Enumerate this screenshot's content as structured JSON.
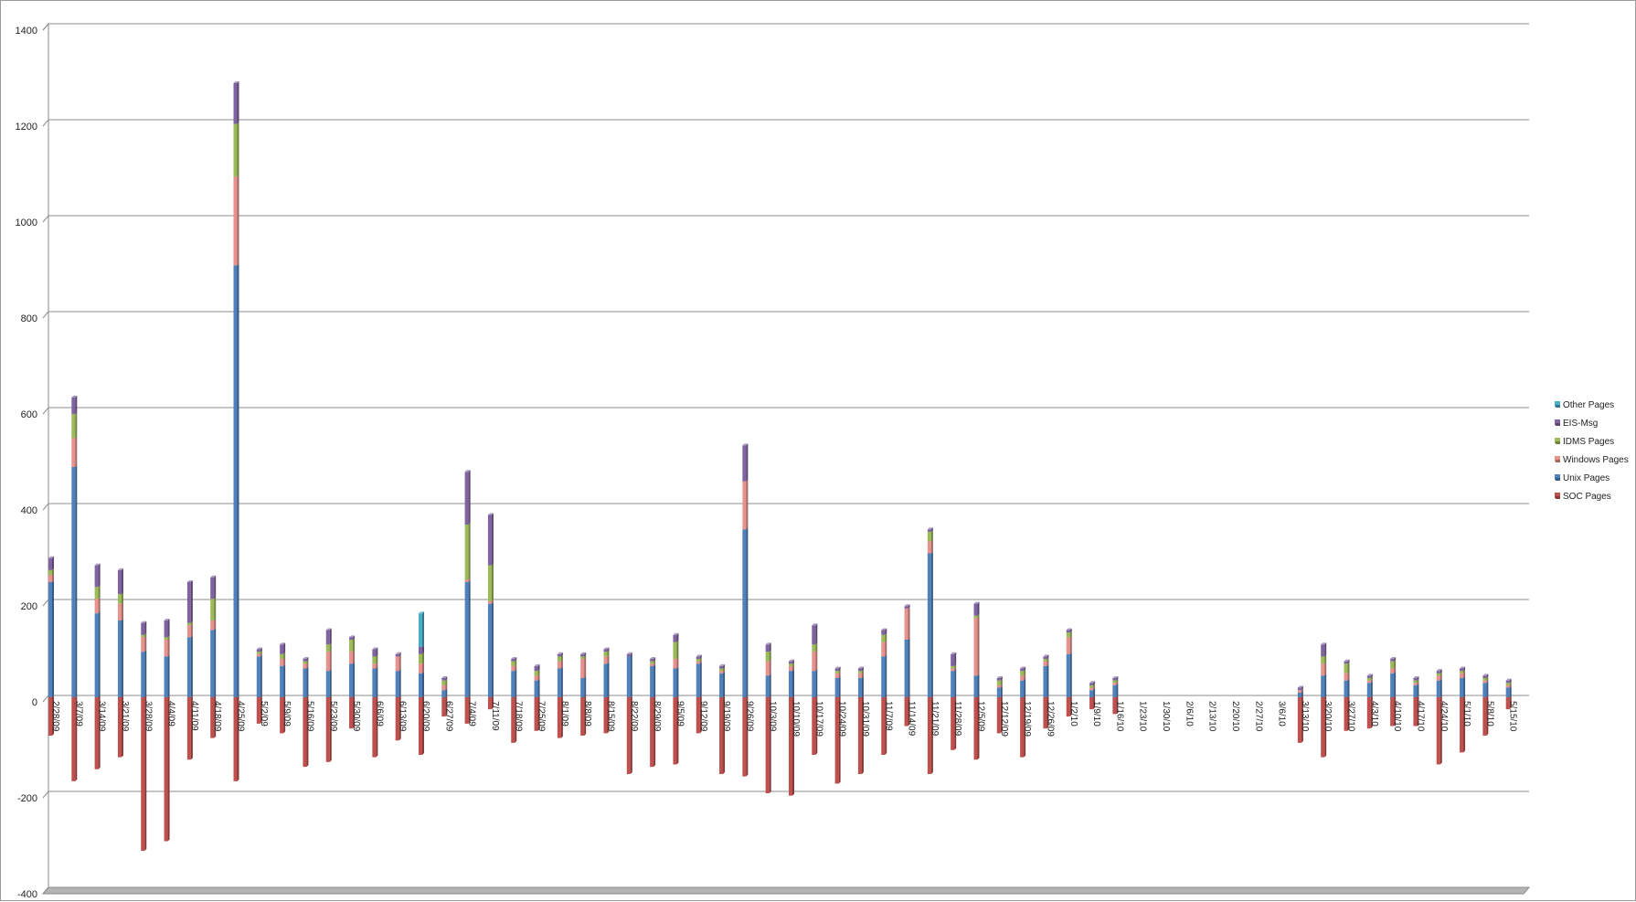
{
  "chart_data": {
    "type": "bar",
    "stacked": true,
    "style": "3d-column",
    "title": "",
    "xlabel": "",
    "ylabel": "",
    "ylim": [
      -400,
      1400
    ],
    "yticks": [
      -400,
      -200,
      0,
      200,
      400,
      600,
      800,
      1000,
      1200,
      1400
    ],
    "grid": true,
    "legend_position": "right",
    "categories": [
      "2/28/09",
      "3/7/09",
      "3/14/09",
      "3/21/09",
      "3/28/09",
      "4/4/09",
      "4/11/09",
      "4/18/09",
      "4/25/09",
      "5/2/09",
      "5/9/09",
      "5/16/09",
      "5/23/09",
      "5/30/09",
      "6/6/09",
      "6/13/09",
      "6/20/09",
      "6/27/09",
      "7/4/09",
      "7/11/09",
      "7/18/09",
      "7/25/09",
      "8/1/09",
      "8/8/09",
      "8/15/09",
      "8/22/09",
      "8/29/09",
      "9/5/09",
      "9/12/09",
      "9/19/09",
      "9/26/09",
      "10/3/09",
      "10/10/09",
      "10/17/09",
      "10/24/09",
      "10/31/09",
      "11/7/09",
      "11/14/09",
      "11/21/09",
      "11/28/09",
      "12/5/09",
      "12/12/09",
      "12/19/09",
      "12/26/09",
      "1/2/10",
      "1/9/10",
      "1/16/10",
      "1/23/10",
      "1/30/10",
      "2/6/10",
      "2/13/10",
      "2/20/10",
      "2/27/10",
      "3/6/10",
      "3/13/10",
      "3/20/10",
      "3/27/10",
      "4/3/10",
      "4/10/10",
      "4/17/10",
      "4/24/10",
      "5/1/10",
      "5/8/10",
      "5/15/10"
    ],
    "series": [
      {
        "name": "SOC Pages",
        "color": "#c0504d",
        "values": [
          -80,
          -175,
          -150,
          -125,
          -320,
          -300,
          -130,
          -85,
          -175,
          -55,
          -75,
          -145,
          -135,
          -65,
          -125,
          -90,
          -120,
          -40,
          -55,
          -25,
          -95,
          -70,
          -85,
          -80,
          -75,
          -160,
          -145,
          -140,
          -75,
          -160,
          -165,
          -200,
          -205,
          -120,
          -180,
          -160,
          -120,
          -60,
          -160,
          -110,
          -130,
          -75,
          -125,
          -65,
          -40,
          -25,
          -35,
          0,
          0,
          0,
          0,
          0,
          0,
          0,
          -95,
          -125,
          -70,
          -65,
          -60,
          -60,
          -140,
          -115,
          -80,
          -25
        ]
      },
      {
        "name": "Unix Pages",
        "color": "#4f81bd",
        "values": [
          240,
          480,
          175,
          160,
          95,
          85,
          125,
          140,
          900,
          85,
          65,
          60,
          55,
          70,
          60,
          55,
          50,
          15,
          240,
          195,
          55,
          35,
          60,
          40,
          70,
          85,
          65,
          60,
          70,
          50,
          350,
          45,
          55,
          55,
          40,
          40,
          85,
          120,
          300,
          55,
          45,
          20,
          35,
          65,
          90,
          15,
          25,
          0,
          0,
          0,
          0,
          0,
          0,
          0,
          10,
          45,
          35,
          30,
          50,
          25,
          35,
          40,
          30,
          20
        ]
      },
      {
        "name": "Windows Pages",
        "color": "#e8928e",
        "values": [
          15,
          60,
          30,
          35,
          30,
          35,
          25,
          20,
          185,
          5,
          15,
          10,
          40,
          25,
          10,
          30,
          20,
          10,
          5,
          5,
          10,
          10,
          15,
          40,
          15,
          0,
          5,
          20,
          5,
          5,
          100,
          30,
          10,
          40,
          10,
          10,
          30,
          65,
          25,
          5,
          120,
          5,
          10,
          10,
          35,
          5,
          5,
          0,
          0,
          0,
          0,
          0,
          0,
          0,
          5,
          25,
          15,
          5,
          10,
          5,
          10,
          10,
          5,
          5
        ]
      },
      {
        "name": "IDMS Pages",
        "color": "#9bbb59",
        "values": [
          10,
          50,
          25,
          20,
          5,
          5,
          5,
          45,
          110,
          5,
          10,
          5,
          15,
          25,
          15,
          0,
          20,
          10,
          115,
          75,
          10,
          10,
          10,
          5,
          10,
          0,
          5,
          35,
          5,
          5,
          0,
          20,
          5,
          15,
          5,
          5,
          15,
          0,
          20,
          5,
          5,
          10,
          10,
          5,
          10,
          5,
          5,
          0,
          0,
          0,
          0,
          0,
          0,
          0,
          0,
          15,
          20,
          5,
          15,
          5,
          5,
          5,
          5,
          5
        ]
      },
      {
        "name": "EIS-Msg",
        "color": "#8064a2",
        "values": [
          25,
          35,
          45,
          50,
          25,
          35,
          85,
          45,
          85,
          5,
          20,
          5,
          30,
          5,
          15,
          5,
          15,
          5,
          110,
          105,
          5,
          10,
          5,
          5,
          5,
          5,
          5,
          15,
          5,
          5,
          75,
          15,
          5,
          40,
          5,
          5,
          10,
          5,
          5,
          25,
          25,
          5,
          5,
          5,
          5,
          5,
          5,
          0,
          0,
          0,
          0,
          0,
          0,
          0,
          5,
          25,
          5,
          5,
          5,
          5,
          5,
          5,
          5,
          5
        ]
      },
      {
        "name": "Other Pages",
        "color": "#4bacc6",
        "values": [
          0,
          0,
          0,
          0,
          0,
          0,
          0,
          0,
          0,
          0,
          0,
          0,
          0,
          0,
          0,
          0,
          70,
          0,
          0,
          0,
          0,
          0,
          0,
          0,
          0,
          0,
          0,
          0,
          0,
          0,
          0,
          0,
          0,
          0,
          0,
          0,
          0,
          0,
          0,
          0,
          0,
          0,
          0,
          0,
          0,
          0,
          0,
          0,
          0,
          0,
          0,
          0,
          0,
          0,
          0,
          0,
          0,
          0,
          0,
          0,
          0,
          0,
          0,
          0
        ]
      }
    ]
  }
}
